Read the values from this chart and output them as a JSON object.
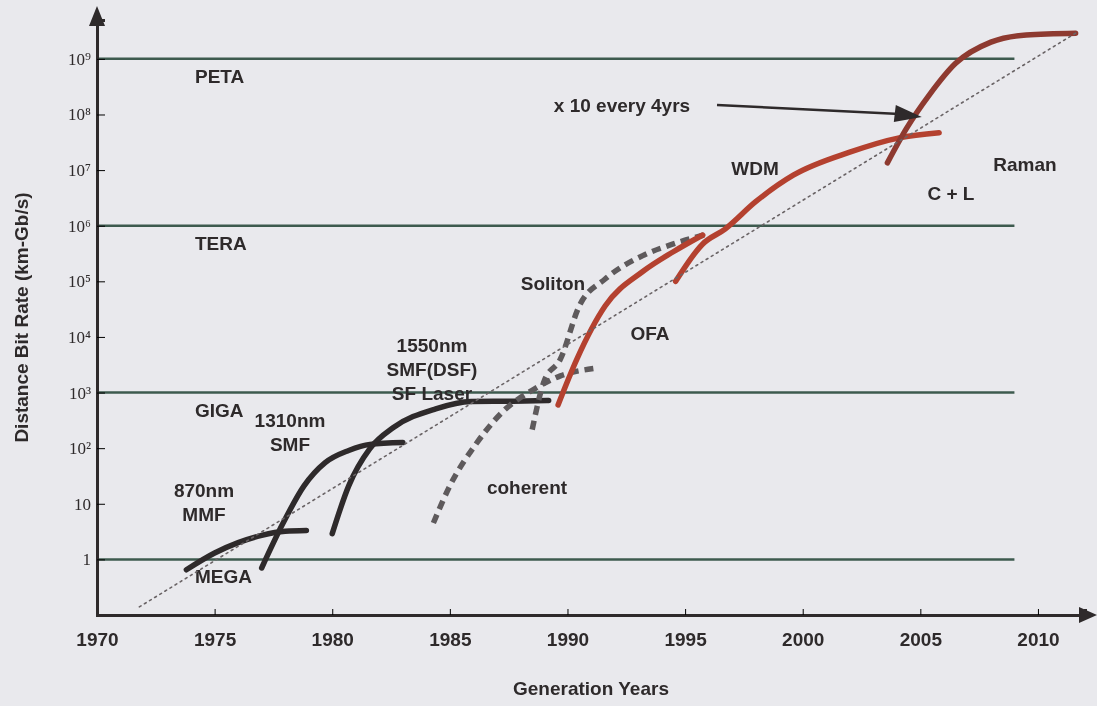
{
  "chart_data": {
    "type": "line",
    "xlabel": "Generation Years",
    "ylabel": "Distance Bit Rate (km-Gb/s)",
    "xlim": [
      1970,
      2012
    ],
    "xticks": [
      1970,
      1975,
      1980,
      1985,
      1990,
      1995,
      2000,
      2005,
      2010
    ],
    "ylim": [
      0.1,
      5000000000
    ],
    "log": true,
    "yticks": [
      1,
      10,
      {
        "value": 100,
        "label": "10²"
      },
      {
        "value": 1000,
        "label": "10³"
      },
      {
        "value": 10000,
        "label": "10⁴"
      },
      {
        "value": 100000,
        "label": "10⁵"
      },
      {
        "value": 1000000,
        "label": "10⁶"
      },
      {
        "value": 10000000,
        "label": "10⁷"
      },
      {
        "value": 100000000,
        "label": "10⁸"
      },
      {
        "value": 1000000000,
        "label": "10⁹"
      }
    ],
    "grid": false,
    "marker": "none",
    "series": [
      {
        "name": "870nm\nMMF",
        "color": "#2e2a2b",
        "line_style": "solid",
        "x": [
          1973.8,
          1975,
          1976,
          1977,
          1978,
          1978.9
        ],
        "values": [
          0.65,
          1.3,
          2.0,
          2.7,
          3.2,
          3.3
        ]
      },
      {
        "name": "1310nm\nSMF",
        "color": "#2e2a2b",
        "line_style": "solid",
        "x": [
          1977,
          1977.9,
          1978.8,
          1979.7,
          1980.7,
          1981.6,
          1983
        ],
        "values": [
          0.7,
          4.4,
          21,
          55,
          91,
          117,
          126
        ]
      },
      {
        "name": "1550nm\nSMF(DSF)\nSF Laser",
        "color": "#2e2a2b",
        "line_style": "solid",
        "x": [
          1980,
          1980.7,
          1981.6,
          1982.6,
          1984.4,
          1985.9,
          1987.7,
          1989.2
        ],
        "values": [
          2.9,
          21,
          98,
          235,
          510,
          690,
          700,
          720
        ]
      },
      {
        "name": "coherent",
        "color": "#5e5a5c",
        "line_style": "dashed",
        "x": [
          1984.3,
          1985,
          1986.1,
          1987.3,
          1988.5,
          1989.7,
          1991.1
        ],
        "values": [
          4.5,
          21,
          117,
          475,
          1100,
          2000,
          2700
        ]
      },
      {
        "name": "Soliton",
        "color": "#5e5a5c",
        "line_style": "dashed",
        "x": [
          1988.5,
          1989,
          1989.7,
          1990.5,
          1991.6,
          1993.2,
          1994.5,
          1995.8
        ],
        "values": [
          215,
          1570,
          4000,
          36000,
          110000,
          290000,
          470000,
          680000
        ]
      },
      {
        "color": "#b4412f",
        "line_style": "solid",
        "x": [
          1989.6,
          1990.4,
          1991.6,
          1993.2,
          1994.5,
          1995.75
        ],
        "values": [
          600,
          4000,
          36000,
          150000,
          340000,
          680000
        ]
      },
      {
        "name": "WDM",
        "color": "#b4412f",
        "line_style": "solid",
        "x": [
          1994.6,
          1995.75,
          1996.7,
          1998,
          1999.6,
          2002,
          2004.1,
          2005.8
        ],
        "values": [
          100000,
          470000,
          870000,
          2700000,
          8100000,
          21000000,
          38000000,
          47000000
        ]
      },
      {
        "color": "#8e3a30",
        "line_style": "solid",
        "x": [
          2003.6,
          2004.4,
          2005.4,
          2006.5,
          2008,
          2009.5,
          2011.6
        ],
        "values": [
          13500000,
          55000000,
          230000000,
          830000000,
          2000000000,
          2700000000,
          2900000000
        ]
      },
      {
        "color": "#6a6466",
        "line_style": "dotted",
        "x": [
          1971.8,
          2011.6
        ],
        "values": [
          0.14,
          2900000000
        ]
      }
    ],
    "ref_lines": [
      {
        "axis": "y",
        "value": 1,
        "label": "MEGA",
        "color": "#3d5a4e"
      },
      {
        "axis": "y",
        "value": 1000,
        "label": "GIGA",
        "color": "#3d5a4e"
      },
      {
        "axis": "y",
        "value": 1000000,
        "label": "TERA",
        "color": "#3d5a4e"
      },
      {
        "axis": "y",
        "value": 1000000000,
        "label": "PETA",
        "color": "#3d5a4e"
      }
    ],
    "annotations": [
      "OFA",
      "C + L",
      "Raman",
      "x 10 every 4yrs"
    ]
  }
}
